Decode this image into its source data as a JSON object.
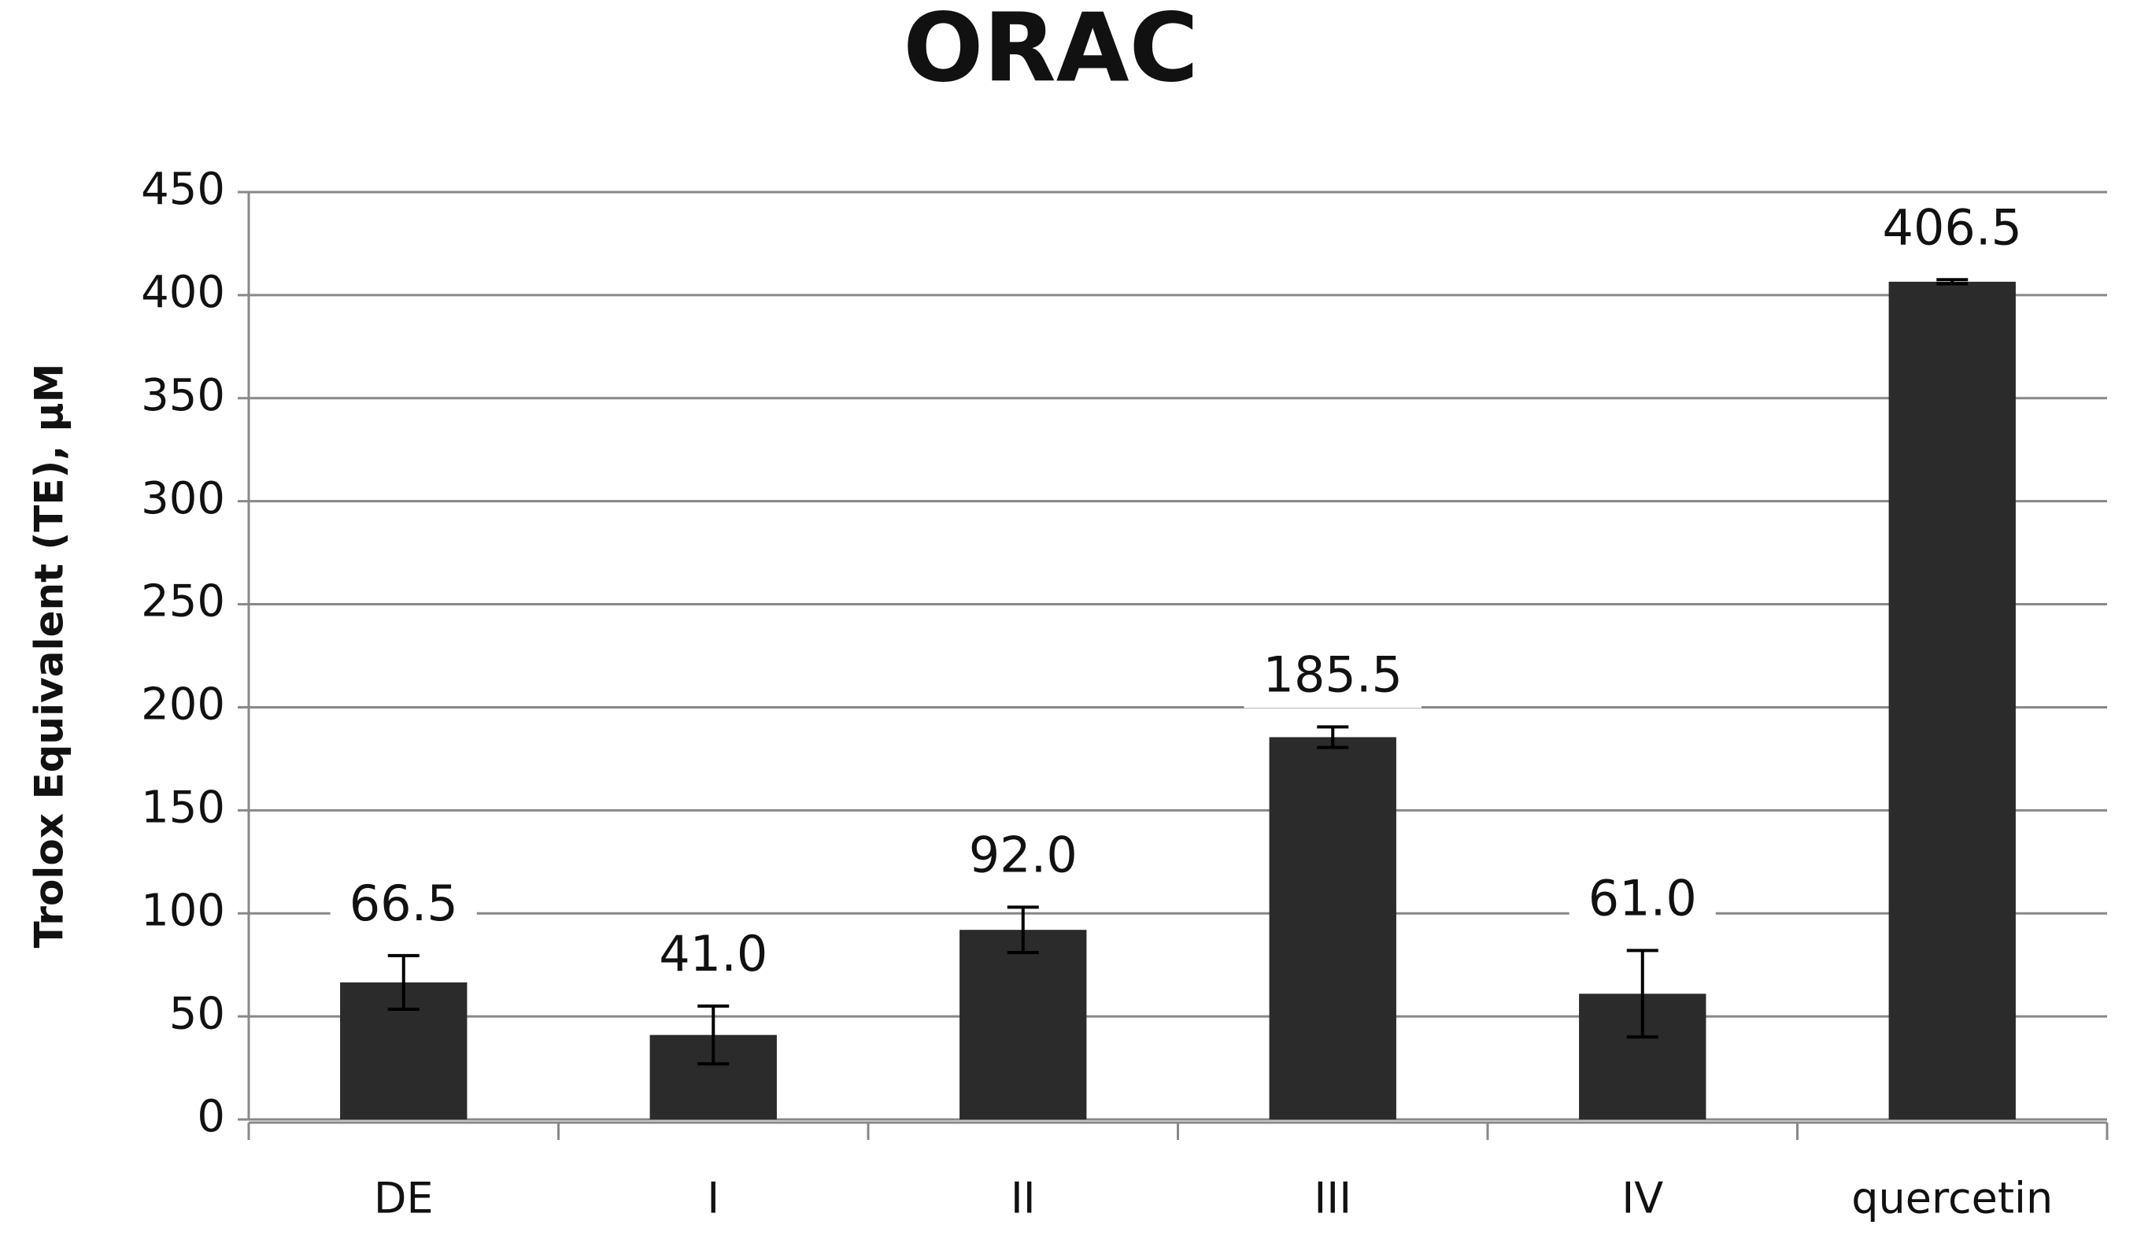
{
  "chart_data": {
    "type": "bar",
    "title": "ORAC",
    "y_label": "Trolox Equivalent (TE), µM",
    "categories": [
      "DE",
      "I",
      "II",
      "III",
      "IV",
      "quercetin"
    ],
    "values": [
      66.5,
      41.0,
      92.0,
      185.5,
      61.0,
      406.5
    ],
    "value_labels": [
      "66.5",
      "41.0",
      "92.0",
      "185.5",
      "61.0",
      "406.5"
    ],
    "errors": [
      13,
      14,
      11,
      5,
      21,
      1
    ],
    "color": "#2b2b2b",
    "ylim": [
      0,
      450
    ],
    "yticks": [
      0,
      50,
      100,
      150,
      200,
      250,
      300,
      350,
      400,
      450
    ],
    "grid": true
  }
}
